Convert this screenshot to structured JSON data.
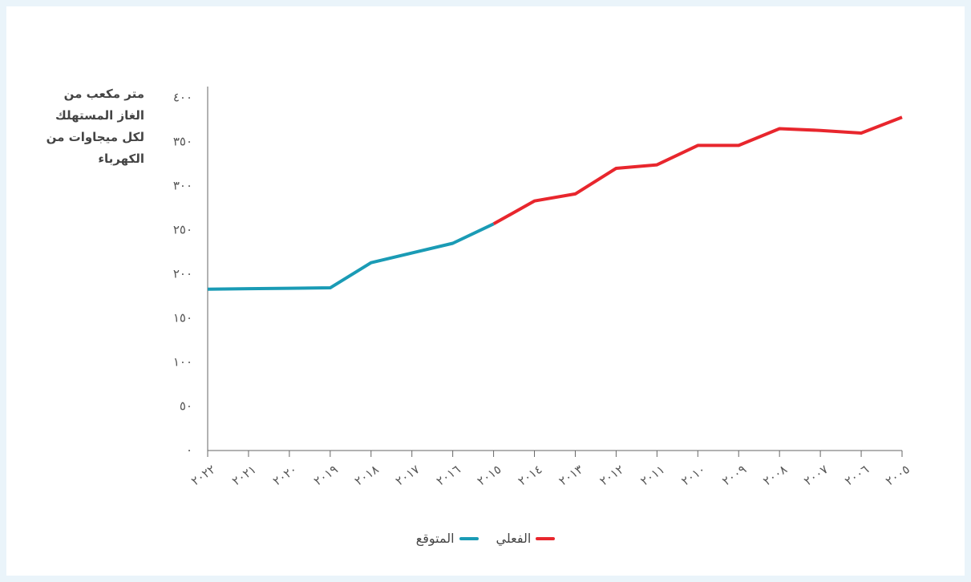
{
  "chart_data": {
    "type": "line",
    "ylabel": "متر مكعب من الغاز المستهلك لكل ميجاوات من الكهرباء",
    "categories": [
      "٢٠٢٢",
      "٢٠٢١",
      "٢٠٢٠",
      "٢٠١٩",
      "٢٠١٨",
      "٢٠١٧",
      "٢٠١٦",
      "٢٠١٥",
      "٢٠١٤",
      "٢٠١٣",
      "٢٠١٢",
      "٢٠١١",
      "٢٠١٠",
      "٢٠٠٩",
      "٢٠٠٨",
      "٢٠٠٧",
      "٢٠٠٦",
      "٢٠٠٥"
    ],
    "series": [
      {
        "name": "الفعلي",
        "color": "#e8262d",
        "values": [
          null,
          null,
          null,
          null,
          null,
          null,
          null,
          257,
          283,
          291,
          320,
          324,
          346,
          346,
          365,
          363,
          360,
          378
        ]
      },
      {
        "name": "المتوقع",
        "color": "#1a9bb5",
        "values": [
          183,
          183.5,
          184,
          184.5,
          213,
          224,
          235,
          257,
          null,
          null,
          null,
          null,
          null,
          null,
          null,
          null,
          null,
          null
        ]
      }
    ],
    "ylim": [
      0,
      400
    ],
    "yticks": [
      {
        "value": 0,
        "label": "٠"
      },
      {
        "value": 50,
        "label": "٥٠"
      },
      {
        "value": 100,
        "label": "١٠٠"
      },
      {
        "value": 150,
        "label": "١٥٠"
      },
      {
        "value": 200,
        "label": "٢٠٠"
      },
      {
        "value": 250,
        "label": "٢٥٠"
      },
      {
        "value": 300,
        "label": "٣٠٠"
      },
      {
        "value": 350,
        "label": "٣٥٠"
      },
      {
        "value": 400,
        "label": "٤٠٠"
      }
    ],
    "grid": false,
    "legend": "bottom"
  }
}
